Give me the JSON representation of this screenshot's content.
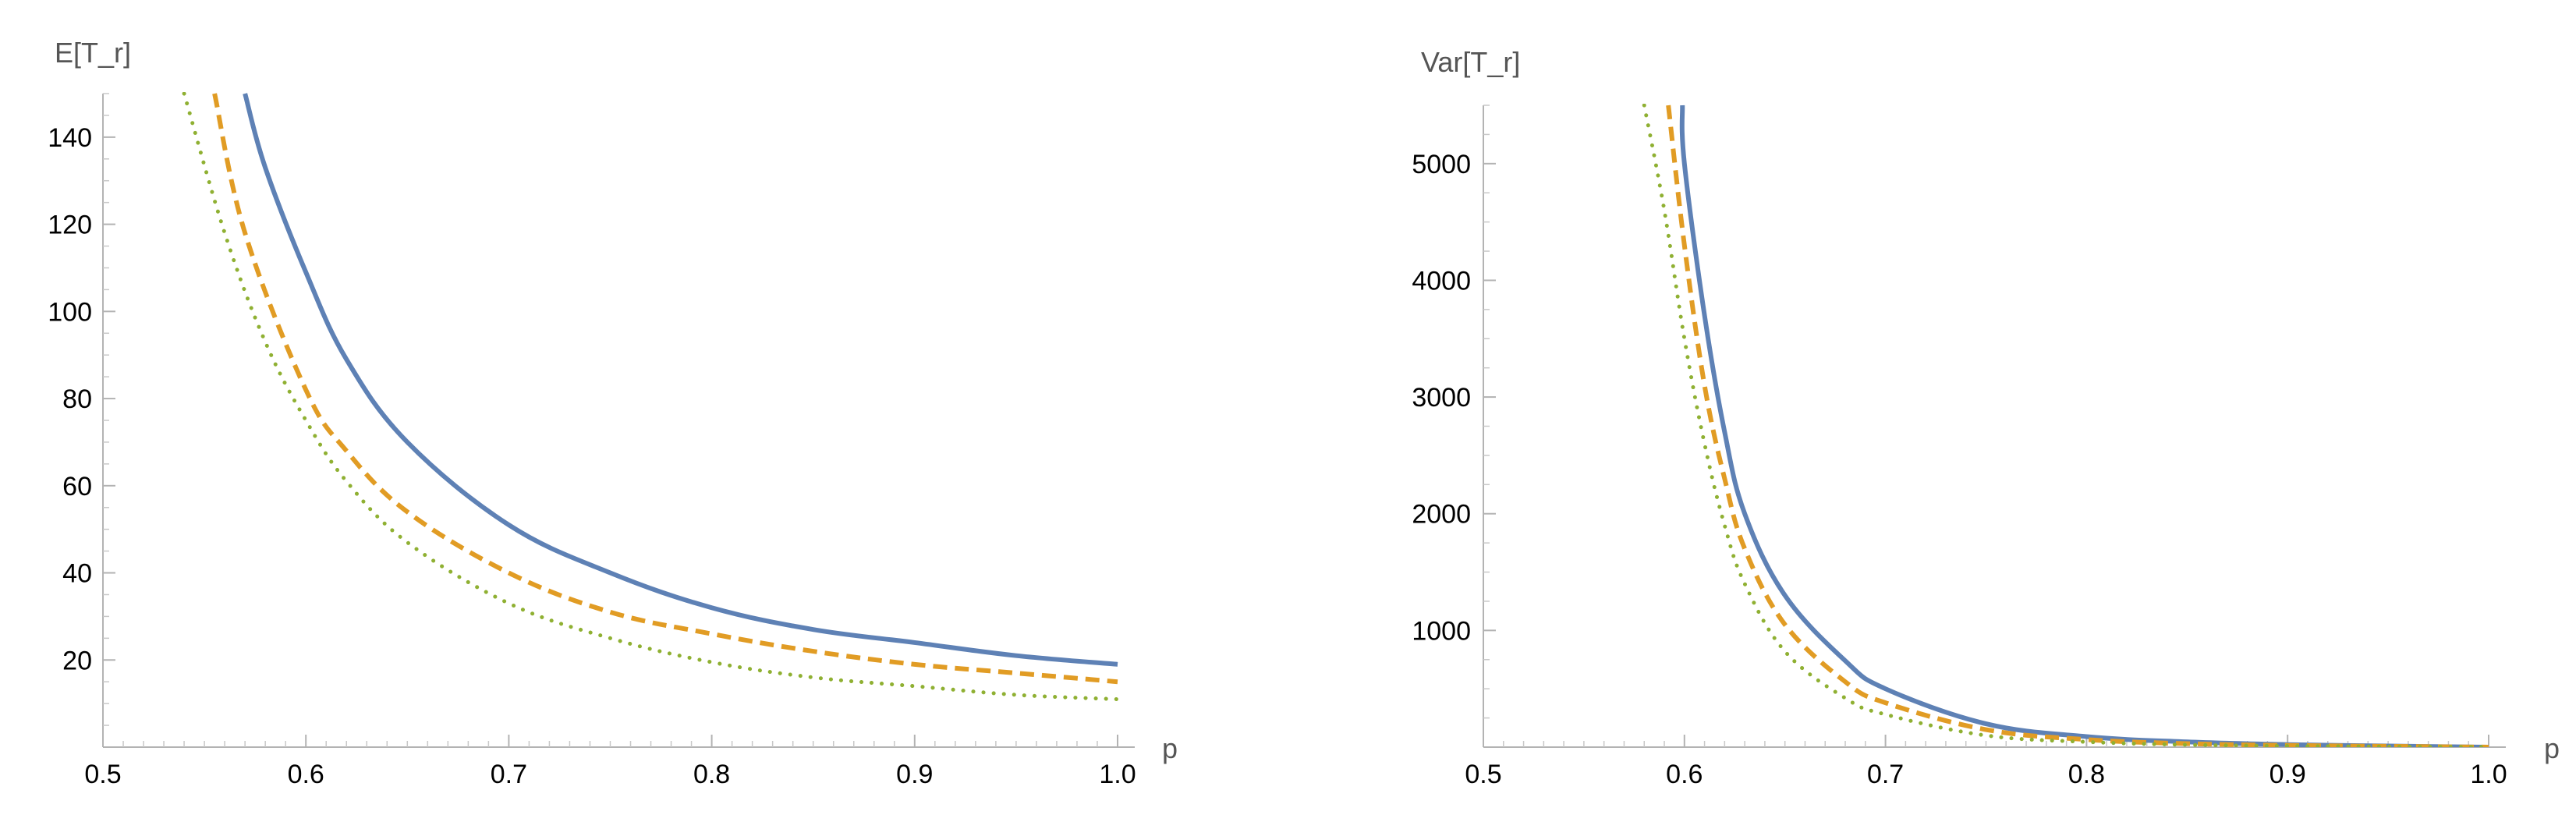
{
  "chart_data": [
    {
      "type": "line",
      "title": "",
      "xlabel": "p",
      "ylabel": "E[T_r]",
      "xlim": [
        0.5,
        1.0
      ],
      "ylim": [
        0,
        150
      ],
      "xticks": [
        "0.5",
        "0.6",
        "0.7",
        "0.8",
        "0.9",
        "1.0"
      ],
      "yticks": [
        "20",
        "40",
        "60",
        "80",
        "100",
        "120",
        "140"
      ],
      "series": [
        {
          "name": "series-1",
          "style": "solid",
          "color": "#5e81b5",
          "x": [
            0.57,
            0.58,
            0.6,
            0.62,
            0.65,
            0.7,
            0.75,
            0.8,
            0.85,
            0.9,
            0.95,
            1.0
          ],
          "values": [
            150,
            133,
            109,
            89,
            70,
            51,
            40,
            32,
            27,
            24,
            21,
            19
          ]
        },
        {
          "name": "series-2",
          "style": "dashed",
          "color": "#e19c24",
          "x": [
            0.555,
            0.57,
            0.6,
            0.62,
            0.65,
            0.7,
            0.75,
            0.8,
            0.85,
            0.9,
            0.95,
            1.0
          ],
          "values": [
            150,
            118,
            82,
            68,
            54,
            40,
            31,
            26,
            22,
            19,
            17,
            15
          ]
        },
        {
          "name": "series-3",
          "style": "dotted",
          "color": "#8fb032",
          "x": [
            0.54,
            0.56,
            0.58,
            0.6,
            0.62,
            0.65,
            0.7,
            0.75,
            0.8,
            0.85,
            0.9,
            0.95,
            1.0
          ],
          "values": [
            150,
            118,
            93,
            75,
            61,
            47,
            33,
            25,
            19.5,
            16,
            14,
            12,
            11
          ]
        }
      ]
    },
    {
      "type": "line",
      "title": "",
      "xlabel": "p",
      "ylabel": "Var[T_r]",
      "xlim": [
        0.5,
        1.0
      ],
      "ylim": [
        0,
        5500
      ],
      "xticks": [
        "0.5",
        "0.6",
        "0.7",
        "0.8",
        "0.9",
        "1.0"
      ],
      "yticks": [
        "1000",
        "2000",
        "3000",
        "4000",
        "5000"
      ],
      "series": [
        {
          "name": "series-1",
          "style": "solid",
          "color": "#5e81b5",
          "x": [
            0.599,
            0.6,
            0.61,
            0.62,
            0.63,
            0.65,
            0.68,
            0.7,
            0.75,
            0.8,
            0.85,
            0.9,
            0.95,
            1.0
          ],
          "values": [
            5500,
            5000,
            3700,
            2700,
            2000,
            1300,
            740,
            500,
            200,
            90,
            45,
            22,
            10,
            0
          ]
        },
        {
          "name": "series-2",
          "style": "dashed",
          "color": "#e19c24",
          "x": [
            0.592,
            0.6,
            0.61,
            0.62,
            0.63,
            0.65,
            0.68,
            0.7,
            0.75,
            0.8,
            0.85,
            0.9,
            0.95,
            1.0
          ],
          "values": [
            5500,
            4300,
            3100,
            2300,
            1700,
            1050,
            560,
            380,
            150,
            65,
            30,
            15,
            7,
            0
          ]
        },
        {
          "name": "series-3",
          "style": "dotted",
          "color": "#8fb032",
          "x": [
            0.58,
            0.59,
            0.6,
            0.61,
            0.62,
            0.63,
            0.65,
            0.68,
            0.7,
            0.75,
            0.8,
            0.85,
            0.9,
            0.95,
            1.0
          ],
          "values": [
            5500,
            4600,
            3500,
            2600,
            1900,
            1400,
            820,
            420,
            280,
            100,
            45,
            20,
            10,
            4,
            0
          ]
        }
      ]
    }
  ]
}
